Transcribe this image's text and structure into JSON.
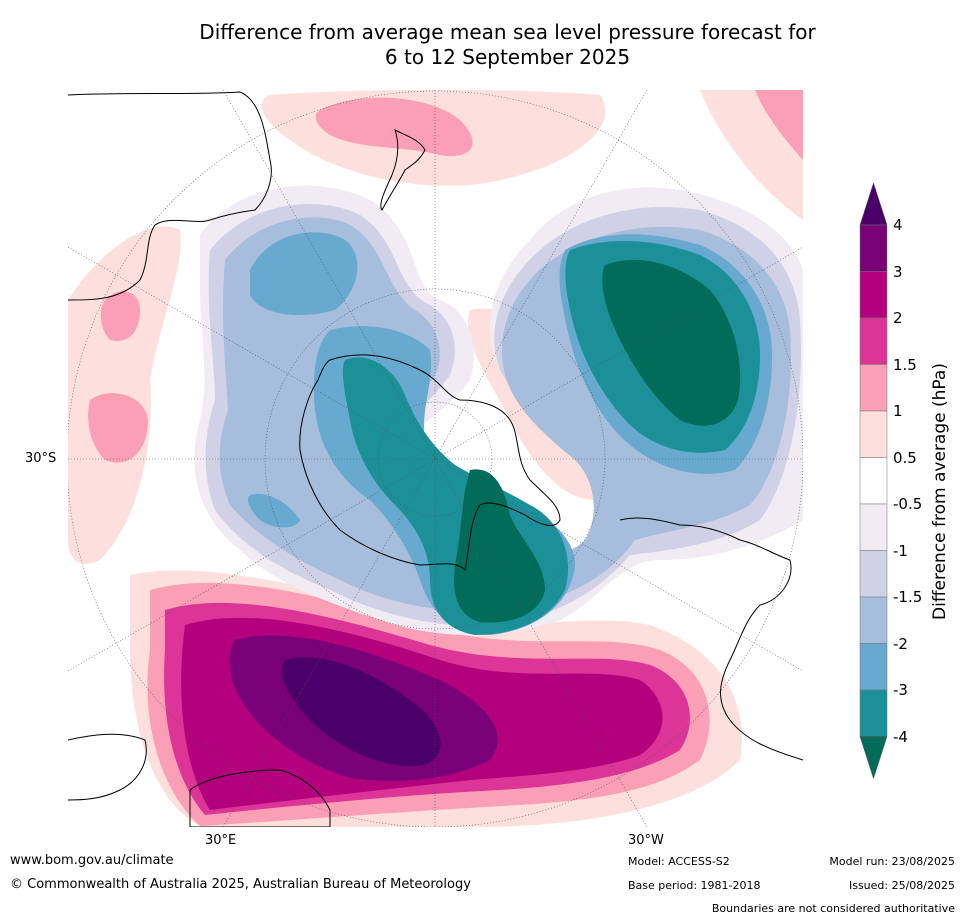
{
  "title": {
    "line1": "Difference from average mean sea level pressure forecast for",
    "line2": "6 to 12 September 2025"
  },
  "map": {
    "projection": "south-polar-stereographic",
    "latitude_label": "30°S",
    "longitude_labels": [
      "30°E",
      "30°W"
    ]
  },
  "legend": {
    "title": "Difference from average (hPa)",
    "ticks": [
      "4",
      "3",
      "2",
      "1.5",
      "1",
      "0.5",
      "-0.5",
      "-1",
      "-1.5",
      "-2",
      "-3",
      "-4"
    ],
    "bins": [
      {
        "range": "> 4",
        "color": "#4a0068"
      },
      {
        "range": "3 to 4",
        "color": "#7a0078"
      },
      {
        "range": "2 to 3",
        "color": "#b3007d"
      },
      {
        "range": "1.5 to 2",
        "color": "#dd3497"
      },
      {
        "range": "1 to 1.5",
        "color": "#fa9fb5"
      },
      {
        "range": "0.5 to 1",
        "color": "#fde0dd"
      },
      {
        "range": "-0.5 to 0.5",
        "color": "#ffffff"
      },
      {
        "range": "-1 to -0.5",
        "color": "#f1ebf4"
      },
      {
        "range": "-1.5 to -1",
        "color": "#d0d1e6"
      },
      {
        "range": "-2 to -1.5",
        "color": "#a6bddb"
      },
      {
        "range": "-3 to -2",
        "color": "#67a9cf"
      },
      {
        "range": "-4 to -3",
        "color": "#1c9099"
      },
      {
        "range": "< -4",
        "color": "#016c59"
      }
    ]
  },
  "footer": {
    "website": "www.bom.gov.au/climate",
    "copyright": "© Commonwealth of Australia 2025, Australian Bureau of Meteorology",
    "model": "Model: ACCESS-S2",
    "base_period": "Base period: 1981-2018",
    "model_run": "Model run: 23/08/2025",
    "issued": "Issued: 25/08/2025",
    "disclaimer": "Boundaries are not considered authoritative"
  }
}
